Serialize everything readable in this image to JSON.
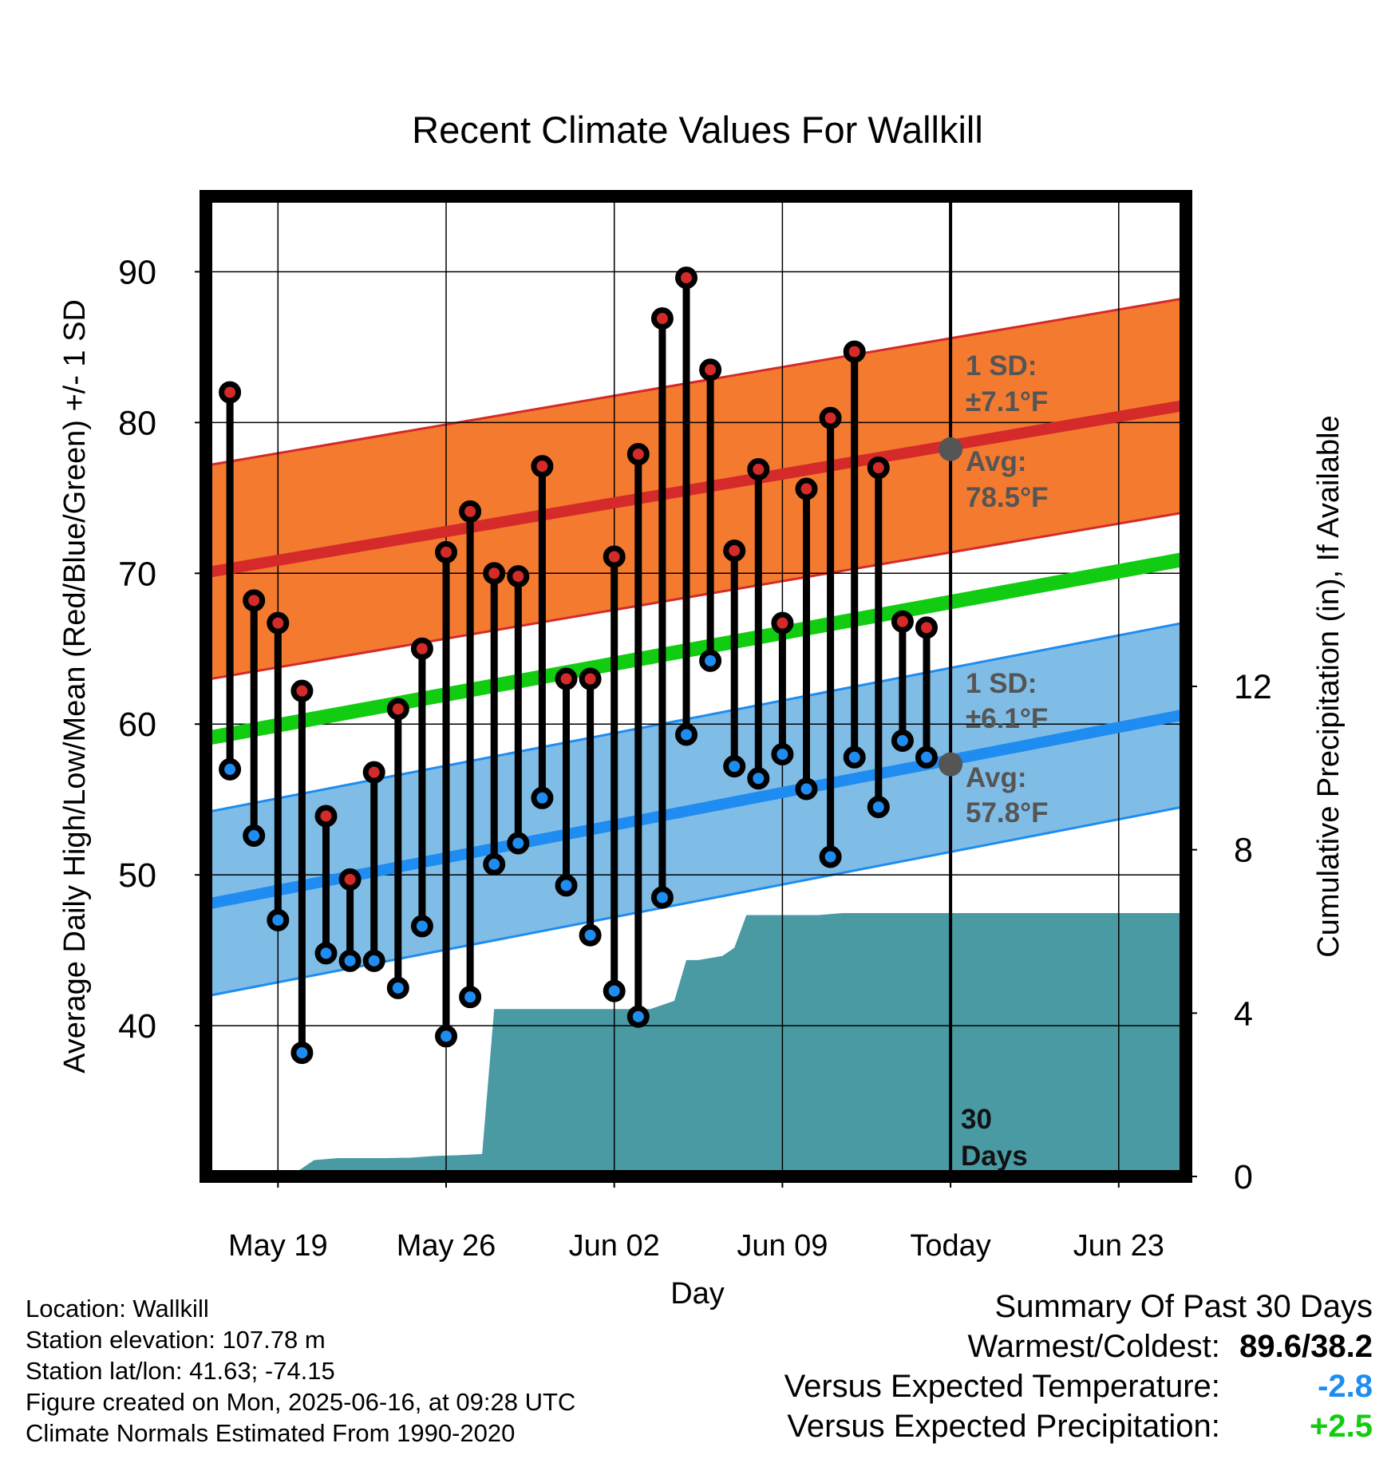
{
  "chart_data": {
    "type": "line",
    "title": "Recent Climate Values For Wallkill",
    "xlabel": "Day",
    "ylabel": "Average Daily High/Low/Mean (Red/Blue/Green) +/- 1 SD",
    "y2label": "Cumulative Precipitation (in), If Available",
    "ylim": [
      30,
      95
    ],
    "y2lim": [
      0,
      24
    ],
    "yticks": [
      "40",
      "50",
      "60",
      "70",
      "80",
      "90"
    ],
    "y2ticks": [
      "0",
      "4",
      "8",
      "12"
    ],
    "xticks": [
      "May 19",
      "May 26",
      "Jun 02",
      "Jun 09",
      "Today",
      "Jun 23"
    ],
    "grid": true,
    "highs": [
      82.0,
      68.2,
      66.7,
      62.2,
      53.9,
      49.7,
      56.8,
      61.0,
      65.0,
      71.4,
      74.1,
      70.0,
      69.8,
      77.1,
      63.0,
      63.0,
      71.1,
      77.9,
      86.9,
      89.6,
      83.5,
      71.5,
      76.9,
      66.7,
      75.6,
      80.3,
      84.7,
      77.0,
      66.8,
      66.4
    ],
    "lows": [
      57.0,
      52.6,
      47.0,
      38.2,
      44.8,
      44.3,
      44.3,
      42.5,
      46.6,
      39.3,
      41.9,
      50.7,
      52.1,
      55.1,
      49.3,
      46.0,
      42.3,
      40.6,
      48.5,
      59.3,
      64.2,
      57.2,
      56.4,
      58.0,
      55.7,
      51.2,
      57.8,
      54.5,
      58.9,
      57.8
    ],
    "normal_high_range": [
      70.0,
      81.2
    ],
    "normal_low_range": [
      48.0,
      60.7
    ],
    "normal_mean_range": [
      59.0,
      71.0
    ],
    "high_sd": 7.1,
    "low_sd": 6.1,
    "precip_x": [
      3.5,
      4.5,
      5.5,
      6.5,
      7.5,
      8.5,
      9.5,
      10.5,
      11.5,
      12.0,
      12.5,
      13.5,
      14.5,
      15.5,
      16.5,
      17.5,
      18.5,
      19.5,
      20.0,
      20.5,
      21.5,
      22.0,
      22.5,
      23.5,
      24.5,
      25.5,
      26.5,
      27.5,
      28.5,
      29.5,
      30.5,
      31.5,
      32.5,
      33.0,
      34.5,
      35.5,
      36.5,
      37.5,
      38.5,
      39.5,
      40.5
    ],
    "precip_y": [
      0.0,
      0.4,
      0.45,
      0.45,
      0.45,
      0.46,
      0.5,
      0.52,
      0.55,
      4.1,
      4.1,
      4.1,
      4.1,
      4.1,
      4.1,
      4.1,
      4.1,
      4.3,
      5.3,
      5.3,
      5.4,
      5.6,
      6.4,
      6.4,
      6.4,
      6.4,
      6.45,
      6.45,
      6.45,
      6.45,
      6.45,
      6.45,
      6.45,
      6.45,
      6.45,
      6.45,
      6.45,
      6.45,
      6.45,
      6.45,
      6.45
    ],
    "annotations": {
      "high_sd_label": "1 SD:",
      "high_sd_value": "±7.1°F",
      "high_avg_label": "Avg:",
      "high_avg_value": "78.5°F",
      "low_sd_label": "1 SD:",
      "low_sd_value": "±6.1°F",
      "low_avg_label": "Avg:",
      "low_avg_value": "57.8°F",
      "period": "30",
      "period_unit": "Days"
    },
    "colors": {
      "high_band": "#f47a30",
      "high_line": "#d42a2a",
      "low_band": "#80bde6",
      "low_line": "#1e8cf0",
      "mean_line": "#12cc12",
      "precip": "#4a9aa4",
      "high_dot": "#d42a2a",
      "low_dot": "#1e8cf0",
      "annotation": "#555555"
    }
  },
  "footer": {
    "location": "Location: Wallkill",
    "elevation": "Station elevation: 107.78 m",
    "latlon": "Station lat/lon: 41.63; -74.15",
    "created": "Figure created on Mon, 2025-06-16, at 09:28 UTC",
    "normals": "Climate Normals Estimated From 1990-2020"
  },
  "summary": {
    "title": "Summary Of Past 30 Days",
    "warm_cold_label": "Warmest/Coldest:",
    "warm_cold_value": "89.6/38.2",
    "temp_label": "Versus Expected Temperature:",
    "temp_value": "-2.8",
    "temp_color": "#1e8cf0",
    "precip_label": "Versus Expected Precipitation:",
    "precip_value": "+2.5",
    "precip_color": "#12cc12"
  }
}
